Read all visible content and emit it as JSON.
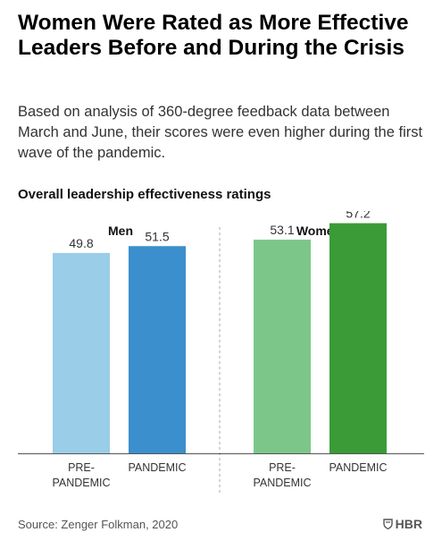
{
  "title": "Women Were Rated as More Effective Leaders Before and During the Crisis",
  "subtitle": "Based on analysis of 360-degree feedback data between March and June, their scores were even higher during the first wave of the pandemic.",
  "chart_heading": "Overall leadership effectiveness ratings",
  "source": "Source: Zenger Folkman, 2020",
  "brand": "HBR",
  "chart_data": {
    "type": "bar",
    "title": "Overall leadership effectiveness ratings",
    "ylim": [
      0,
      65
    ],
    "grid": false,
    "groups": [
      {
        "name": "Men",
        "bars": [
          {
            "label": [
              "PRE-",
              "PANDEMIC"
            ],
            "value": 49.8,
            "color": "#9acde8"
          },
          {
            "label": [
              "PANDEMIC"
            ],
            "value": 51.5,
            "color": "#3b8fcc"
          }
        ]
      },
      {
        "name": "Women",
        "bars": [
          {
            "label": [
              "PRE-",
              "PANDEMIC"
            ],
            "value": 53.1,
            "color": "#7cc68a"
          },
          {
            "label": [
              "PANDEMIC"
            ],
            "value": 57.2,
            "color": "#3a9b37"
          }
        ]
      }
    ]
  }
}
